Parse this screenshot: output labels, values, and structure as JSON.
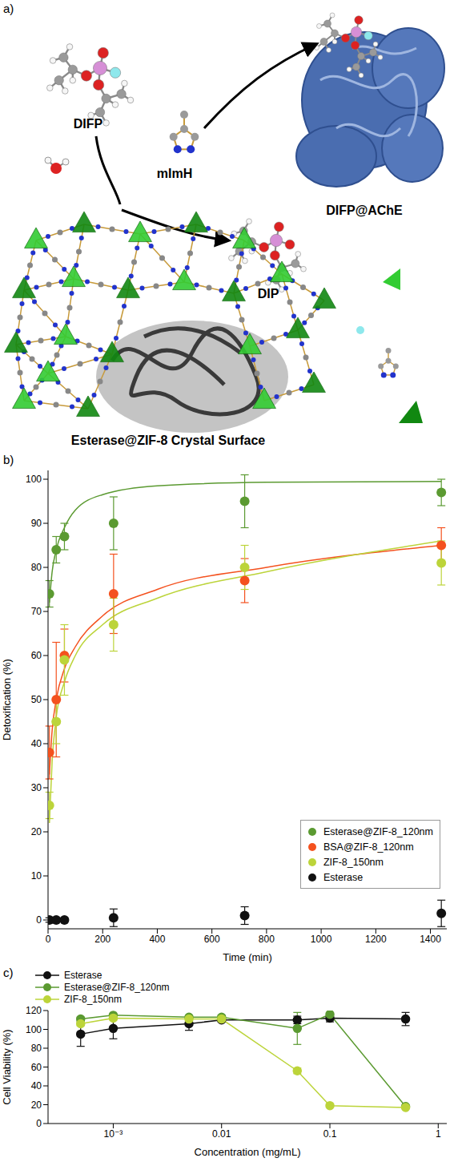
{
  "diagram": {
    "panel": "a)",
    "labels": {
      "difp": "DIFP",
      "mimh": "mImH",
      "complex": "DIFP@AChE",
      "dip": "DIP",
      "surface": "Esterase@ZIF-8 Crystal Surface"
    }
  },
  "chart_data": [
    {
      "panel": "b)",
      "type": "scatter",
      "x_label": "Time (min)",
      "y_label": "Detoxification (%)",
      "xlim": [
        0,
        1460
      ],
      "xticks": [
        0,
        200,
        400,
        600,
        800,
        1000,
        1200,
        1400
      ],
      "ylim": [
        -2,
        102
      ],
      "yticks": [
        0,
        10,
        20,
        30,
        40,
        50,
        60,
        70,
        80,
        90,
        100
      ],
      "grid": false,
      "legend": "lower right",
      "marker": "circle",
      "series": [
        {
          "name": "Esterase@ZIF-8_120nm",
          "color": "#5b9a31",
          "x": [
            5,
            30,
            60,
            240,
            720,
            1440
          ],
          "values": [
            74,
            84,
            87,
            90,
            95,
            97
          ],
          "errors": [
            3,
            3,
            3,
            6,
            6,
            3
          ],
          "fit": {
            "x": [
              5,
              15,
              30,
              60,
              100,
              200,
              400,
              800,
              1440
            ],
            "values": [
              72,
              79,
              84,
              89,
              93,
              96.5,
              98.5,
              99.3,
              99.5
            ]
          }
        },
        {
          "name": "BSA@ZIF-8_120nm",
          "color": "#f4511e",
          "x": [
            5,
            30,
            60,
            240,
            720,
            1440
          ],
          "values": [
            38,
            50,
            60,
            74,
            77,
            85
          ],
          "errors": [
            6,
            13,
            6,
            9,
            5,
            4
          ],
          "fit": {
            "x": [
              5,
              15,
              30,
              60,
              100,
              200,
              400,
              800,
              1440
            ],
            "values": [
              33,
              43,
              50,
              57,
              62,
              69,
              75,
              80,
              85
            ]
          }
        },
        {
          "name": "ZIF-8_150nm",
          "color": "#bcd43a",
          "x": [
            5,
            30,
            60,
            240,
            720,
            1440
          ],
          "values": [
            26,
            45,
            59,
            67,
            80,
            81
          ],
          "errors": [
            3,
            5,
            8,
            6,
            5,
            5
          ],
          "fit": {
            "x": [
              5,
              15,
              30,
              60,
              100,
              200,
              400,
              800,
              1440
            ],
            "values": [
              22,
              36,
              46,
              54,
              60,
              67,
              73,
              79,
              86
            ]
          }
        },
        {
          "name": "Esterase",
          "color": "#111111",
          "x": [
            5,
            30,
            60,
            240,
            720,
            1440
          ],
          "values": [
            0,
            0,
            0,
            0.5,
            1,
            1.5
          ],
          "errors": [
            0.5,
            0.5,
            0.5,
            2,
            2,
            3
          ]
        }
      ]
    },
    {
      "panel": "c)",
      "type": "line",
      "x_label": "Concentration (mg/mL)",
      "y_label": "Cell Viability (%)",
      "log": "x",
      "xlim": [
        0.00025,
        1.2
      ],
      "xticks": [
        {
          "value": 0.001,
          "label": "10⁻³"
        },
        0.01,
        0.1,
        1
      ],
      "ylim": [
        0,
        120
      ],
      "yticks": [
        0,
        20,
        40,
        60,
        80,
        100,
        120
      ],
      "grid": false,
      "legend": "top",
      "marker": "circle",
      "series": [
        {
          "name": "Esterase",
          "color": "#111111",
          "x": [
            0.0005,
            0.001,
            0.005,
            0.01,
            0.05,
            0.1,
            0.5
          ],
          "values": [
            95,
            101,
            106,
            110,
            110,
            112,
            111
          ],
          "errors": [
            13,
            11,
            7,
            2,
            4,
            4,
            7
          ]
        },
        {
          "name": "Esterase@ZIF-8_120nm",
          "color": "#5b9a31",
          "x": [
            0.0005,
            0.001,
            0.005,
            0.01,
            0.05,
            0.1,
            0.5
          ],
          "values": [
            111,
            115,
            113,
            113,
            101,
            116,
            18
          ],
          "errors": [
            2,
            1,
            1,
            2,
            17,
            2,
            1
          ]
        },
        {
          "name": "ZIF-8_150nm",
          "color": "#bcd43a",
          "x": [
            0.0005,
            0.001,
            0.005,
            0.01,
            0.05,
            0.1,
            0.5
          ],
          "values": [
            106,
            112,
            111,
            111,
            56,
            19,
            17
          ],
          "errors": [
            2,
            2,
            1,
            2,
            3,
            1,
            1
          ]
        }
      ]
    }
  ]
}
